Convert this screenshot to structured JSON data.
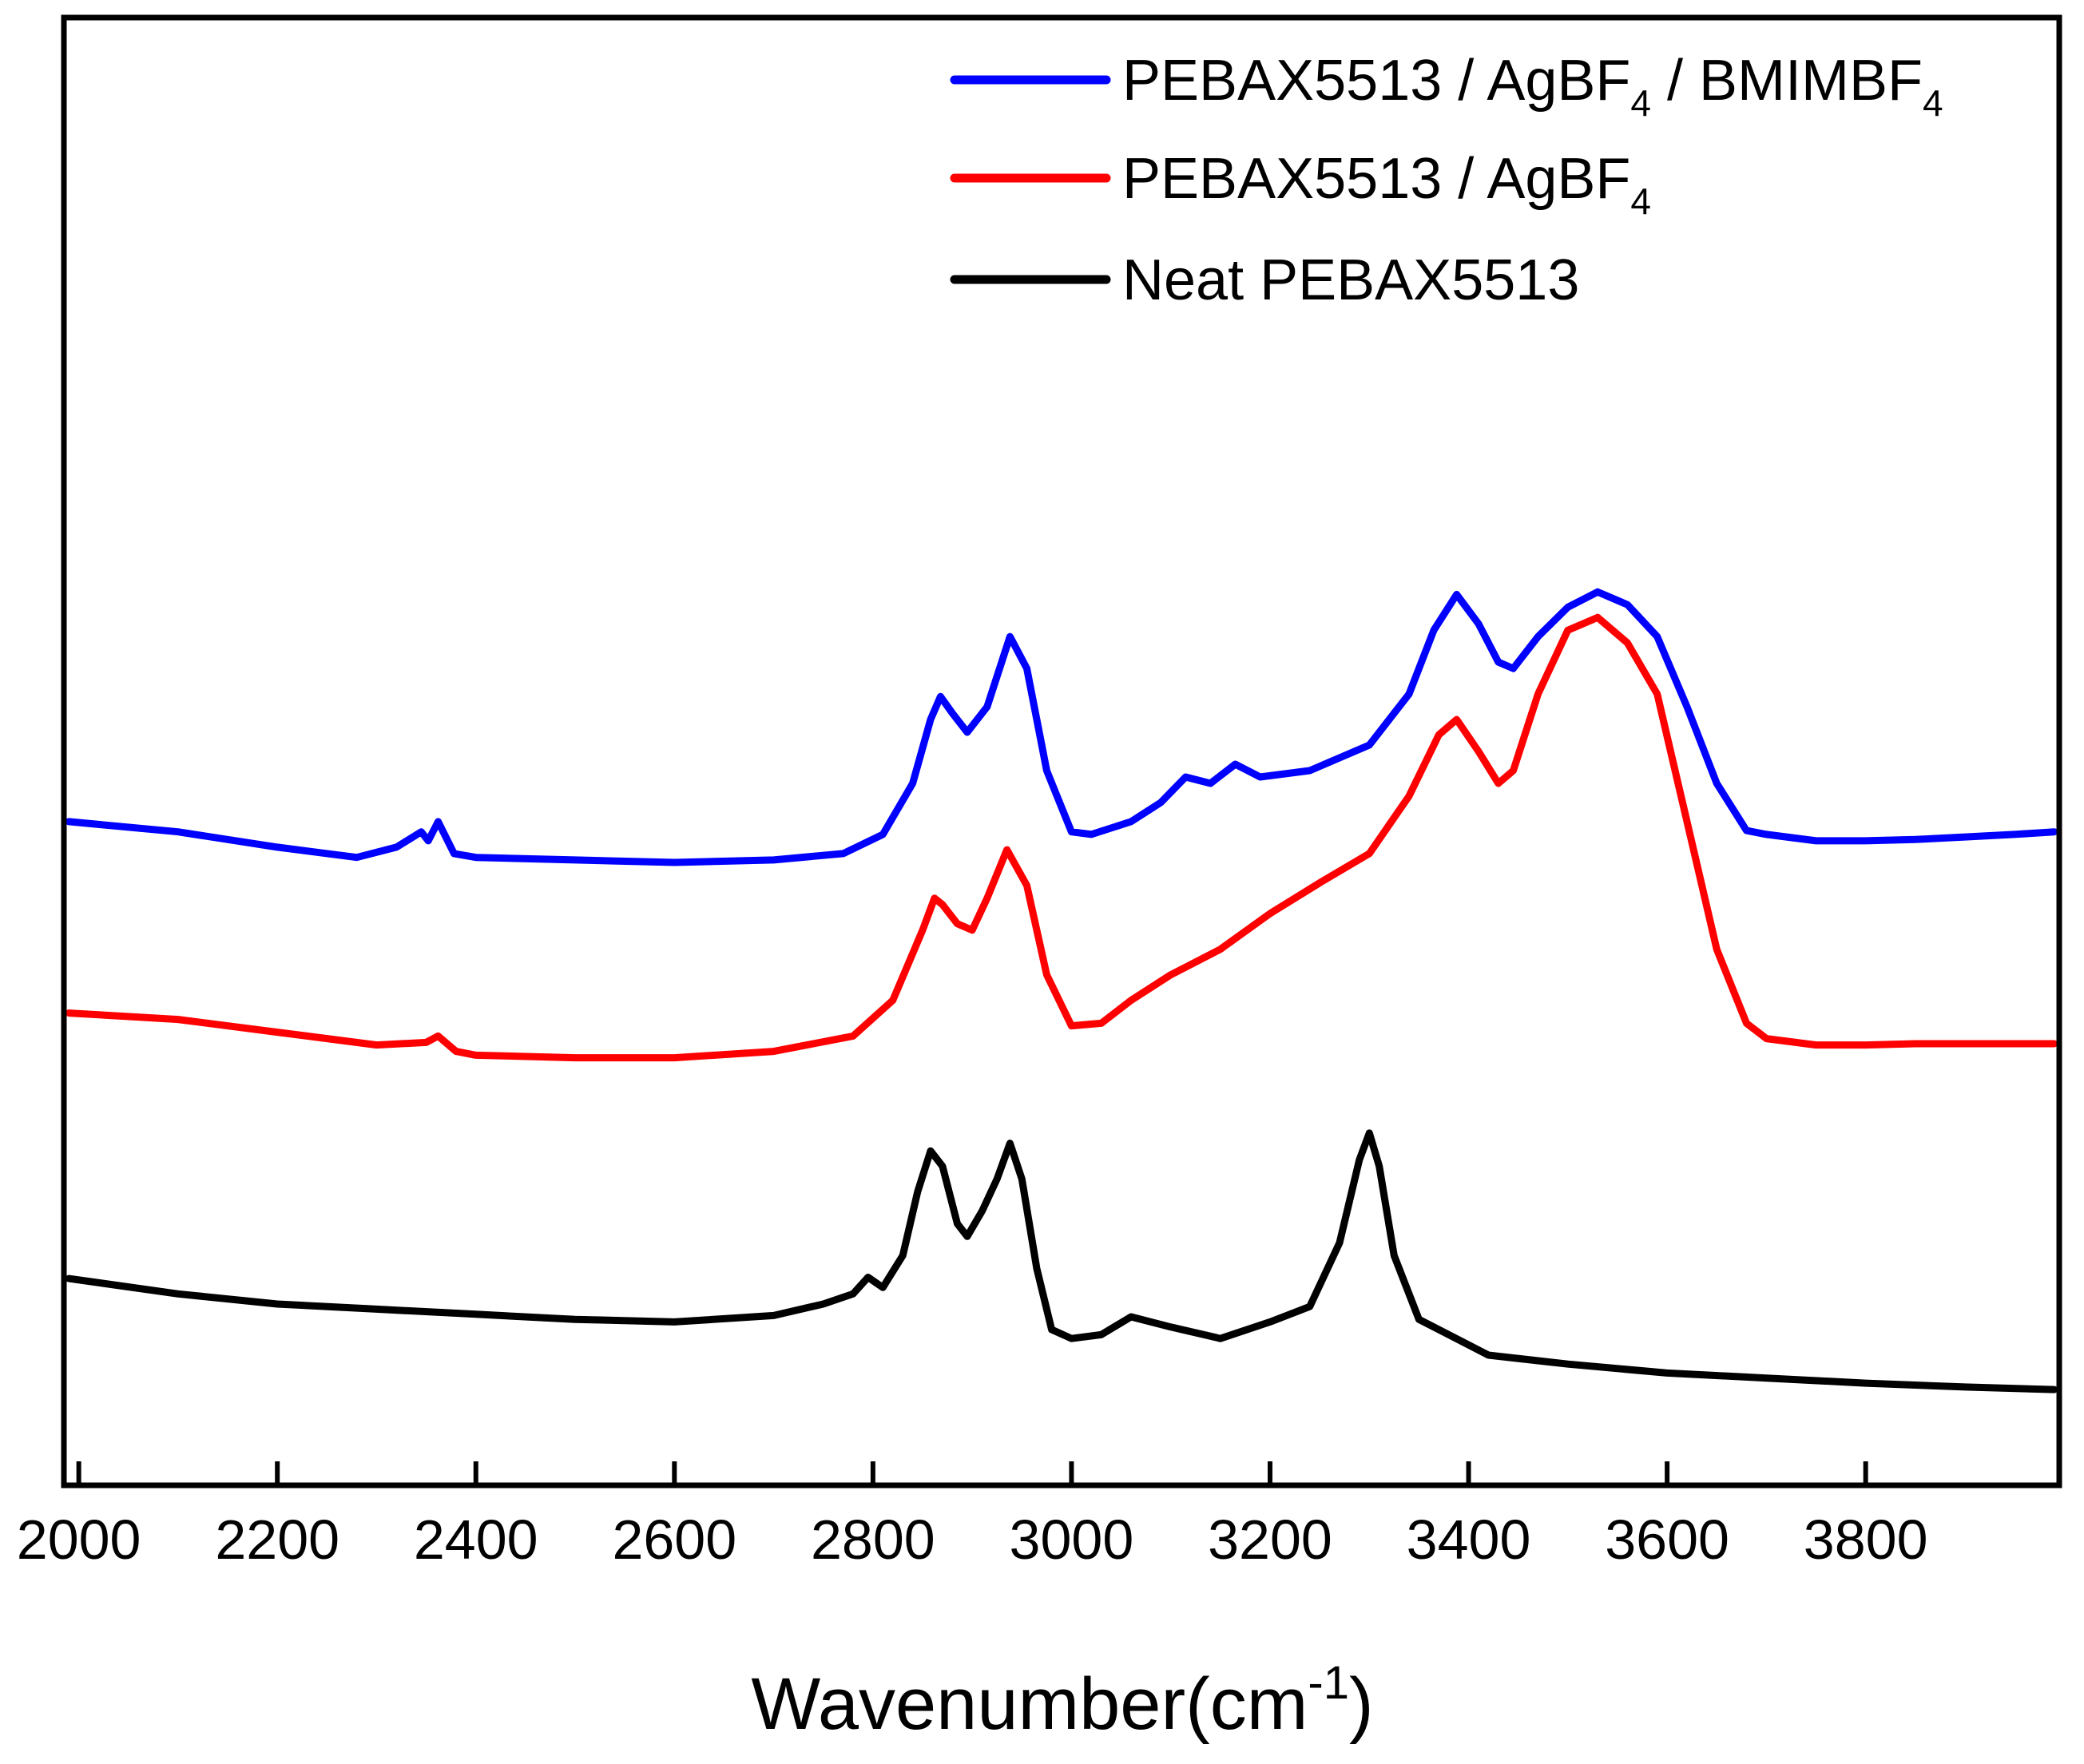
{
  "chart_data": {
    "type": "line",
    "title": "",
    "xlabel": "Wavenumber(cm",
    "xlabel_sup": "-1",
    "xlabel_close": ")",
    "ylabel": "",
    "xlim": [
      1985,
      3995
    ],
    "ylim": [
      0,
      11.5
    ],
    "x_ticks": [
      2000,
      2200,
      2400,
      2600,
      2800,
      3000,
      3200,
      3400,
      3600,
      3800
    ],
    "grid": false,
    "legend_position": "top-right",
    "series": [
      {
        "name": "PEBAX5513 / AgBF4 / BMIMBF4",
        "legend_parts": [
          "PEBAX5513 / AgBF",
          "4",
          " / BMIMBF",
          "4"
        ],
        "color": "#0000ff",
        "x": [
          1990,
          2100,
          2200,
          2280,
          2320,
          2345,
          2352,
          2362,
          2378,
          2400,
          2500,
          2600,
          2700,
          2770,
          2810,
          2840,
          2858,
          2868,
          2880,
          2895,
          2915,
          2938,
          2955,
          2975,
          3000,
          3020,
          3060,
          3090,
          3115,
          3140,
          3165,
          3190,
          3240,
          3300,
          3340,
          3365,
          3388,
          3410,
          3430,
          3445,
          3470,
          3500,
          3530,
          3560,
          3590,
          3620,
          3650,
          3680,
          3700,
          3750,
          3800,
          3850,
          3900,
          3950,
          3990
        ],
        "y": [
          5.2,
          5.12,
          5.0,
          4.92,
          5.0,
          5.12,
          5.05,
          5.2,
          4.95,
          4.92,
          4.9,
          4.88,
          4.9,
          4.95,
          5.1,
          5.5,
          6.0,
          6.18,
          6.05,
          5.9,
          6.1,
          6.65,
          6.4,
          5.6,
          5.12,
          5.1,
          5.2,
          5.35,
          5.55,
          5.5,
          5.65,
          5.55,
          5.6,
          5.8,
          6.2,
          6.7,
          6.98,
          6.75,
          6.45,
          6.4,
          6.65,
          6.88,
          7.0,
          6.9,
          6.65,
          6.1,
          5.5,
          5.13,
          5.1,
          5.05,
          5.05,
          5.06,
          5.08,
          5.1,
          5.12
        ],
        "values_note": "read from plotted curve"
      },
      {
        "name": "PEBAX5513 / AgBF4",
        "legend_parts": [
          "PEBAX5513 / AgBF",
          "4"
        ],
        "color": "#ff0000",
        "x": [
          1990,
          2100,
          2200,
          2300,
          2350,
          2362,
          2380,
          2400,
          2500,
          2600,
          2700,
          2780,
          2820,
          2850,
          2862,
          2870,
          2885,
          2900,
          2915,
          2935,
          2955,
          2975,
          3000,
          3030,
          3060,
          3100,
          3150,
          3200,
          3250,
          3300,
          3340,
          3370,
          3388,
          3410,
          3430,
          3445,
          3470,
          3500,
          3530,
          3560,
          3590,
          3620,
          3650,
          3680,
          3700,
          3750,
          3800,
          3850,
          3900,
          3950,
          3990
        ],
        "y": [
          3.7,
          3.65,
          3.55,
          3.45,
          3.47,
          3.52,
          3.4,
          3.37,
          3.35,
          3.35,
          3.4,
          3.52,
          3.8,
          4.35,
          4.6,
          4.55,
          4.4,
          4.35,
          4.6,
          4.98,
          4.7,
          4.0,
          3.6,
          3.62,
          3.8,
          4.0,
          4.2,
          4.48,
          4.72,
          4.95,
          5.4,
          5.88,
          6.0,
          5.75,
          5.5,
          5.6,
          6.2,
          6.7,
          6.8,
          6.6,
          6.2,
          5.2,
          4.2,
          3.62,
          3.5,
          3.45,
          3.45,
          3.46,
          3.46,
          3.46,
          3.46
        ],
        "values_note": "read from plotted curve"
      },
      {
        "name": "Neat PEBAX5513",
        "legend_parts": [
          "Neat PEBAX5513"
        ],
        "color": "#000000",
        "x": [
          1990,
          2100,
          2200,
          2300,
          2400,
          2500,
          2600,
          2700,
          2750,
          2780,
          2795,
          2810,
          2830,
          2845,
          2858,
          2870,
          2885,
          2895,
          2910,
          2925,
          2938,
          2950,
          2965,
          2980,
          3000,
          3030,
          3060,
          3100,
          3150,
          3200,
          3240,
          3270,
          3290,
          3300,
          3310,
          3325,
          3350,
          3380,
          3420,
          3500,
          3600,
          3700,
          3800,
          3900,
          3990
        ],
        "y": [
          1.62,
          1.5,
          1.42,
          1.38,
          1.34,
          1.3,
          1.28,
          1.33,
          1.42,
          1.5,
          1.63,
          1.55,
          1.8,
          2.3,
          2.62,
          2.5,
          2.05,
          1.95,
          2.15,
          2.4,
          2.68,
          2.4,
          1.7,
          1.22,
          1.15,
          1.18,
          1.32,
          1.24,
          1.15,
          1.28,
          1.4,
          1.9,
          2.55,
          2.76,
          2.5,
          1.8,
          1.3,
          1.18,
          1.02,
          0.95,
          0.88,
          0.84,
          0.8,
          0.77,
          0.75
        ],
        "values_note": "read from plotted curve"
      }
    ]
  }
}
